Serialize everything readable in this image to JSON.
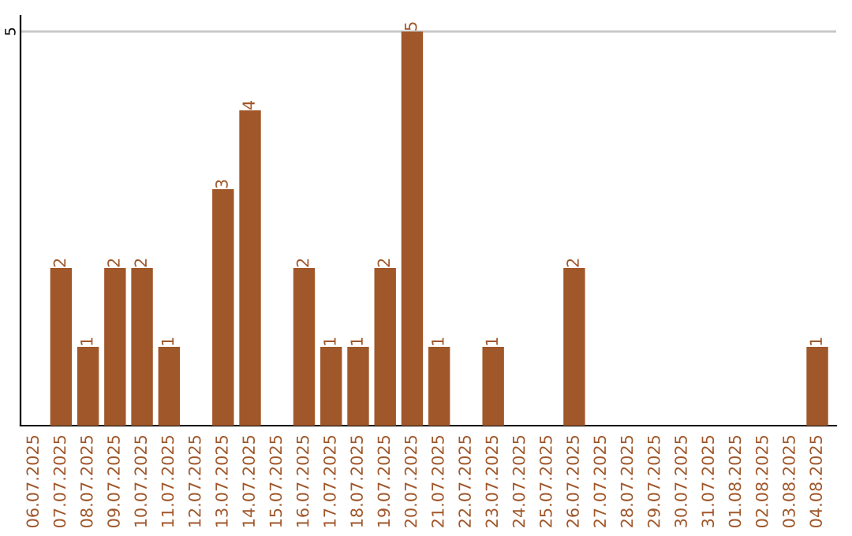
{
  "chart_data": {
    "type": "bar",
    "categories": [
      "06.07.2025",
      "07.07.2025",
      "08.07.2025",
      "09.07.2025",
      "10.07.2025",
      "11.07.2025",
      "12.07.2025",
      "13.07.2025",
      "14.07.2025",
      "15.07.2025",
      "16.07.2025",
      "17.07.2025",
      "18.07.2025",
      "19.07.2025",
      "20.07.2025",
      "21.07.2025",
      "22.07.2025",
      "23.07.2025",
      "24.07.2025",
      "25.07.2025",
      "26.07.2025",
      "27.07.2025",
      "28.07.2025",
      "29.07.2025",
      "30.07.2025",
      "31.07.2025",
      "01.08.2025",
      "02.08.2025",
      "03.08.2025",
      "04.08.2025"
    ],
    "values": [
      0,
      2,
      1,
      2,
      2,
      1,
      0,
      3,
      4,
      0,
      2,
      1,
      1,
      2,
      5,
      1,
      0,
      1,
      0,
      0,
      2,
      0,
      0,
      0,
      0,
      0,
      0,
      0,
      0,
      1
    ],
    "value_labels": [
      null,
      "2",
      "1",
      "2",
      "2",
      "1",
      null,
      "3",
      "4",
      null,
      "2",
      "1",
      "1",
      "2",
      "5",
      "1",
      null,
      "1",
      null,
      null,
      "2",
      null,
      null,
      null,
      null,
      null,
      null,
      null,
      null,
      "1"
    ],
    "color": "#a0572a",
    "ylim": [
      0,
      5.2
    ],
    "yticks": [
      5
    ],
    "grid": "y"
  }
}
